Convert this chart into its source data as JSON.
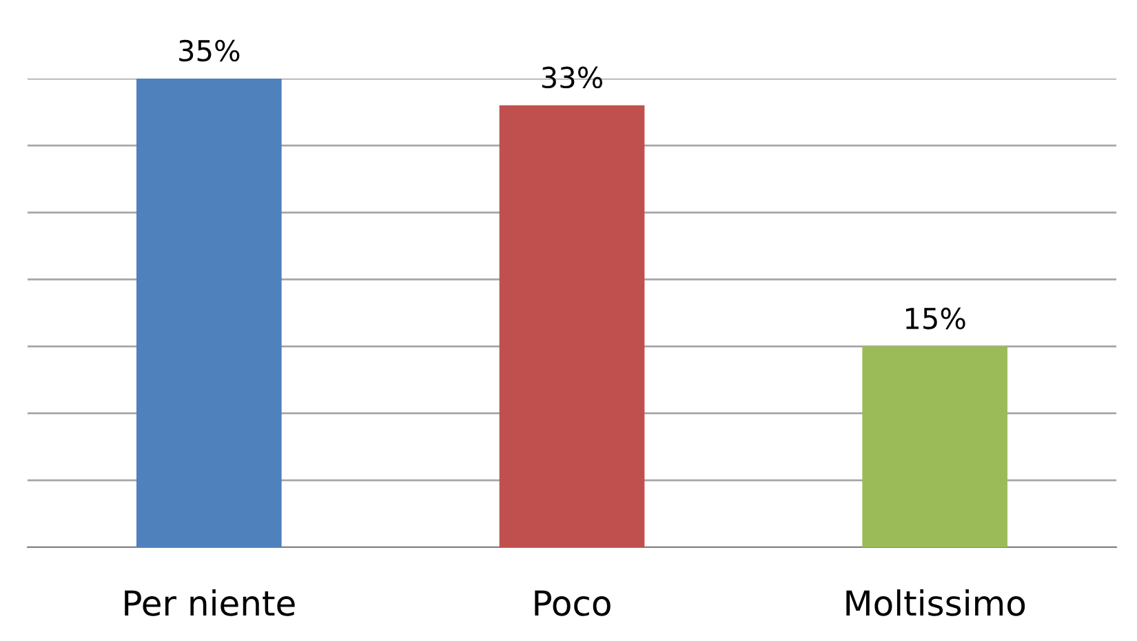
{
  "chart_data": {
    "type": "bar",
    "categories": [
      "Per niente",
      "Poco",
      "Moltissimo"
    ],
    "values": [
      35,
      33,
      15
    ],
    "colors": [
      "#4f81bd",
      "#c0504d",
      "#9bbb59"
    ],
    "value_labels": [
      "35%",
      "33%",
      "15%"
    ],
    "yticks": [
      {
        "value": 0,
        "label": null
      },
      {
        "value": 5,
        "label": null
      },
      {
        "value": 10,
        "label": null
      },
      {
        "value": 15,
        "label": null
      },
      {
        "value": 20,
        "label": null
      },
      {
        "value": 25,
        "label": null
      },
      {
        "value": 30,
        "label": null
      },
      {
        "value": 35,
        "label": null
      }
    ],
    "grid": "y",
    "tick_labels": "x"
  }
}
